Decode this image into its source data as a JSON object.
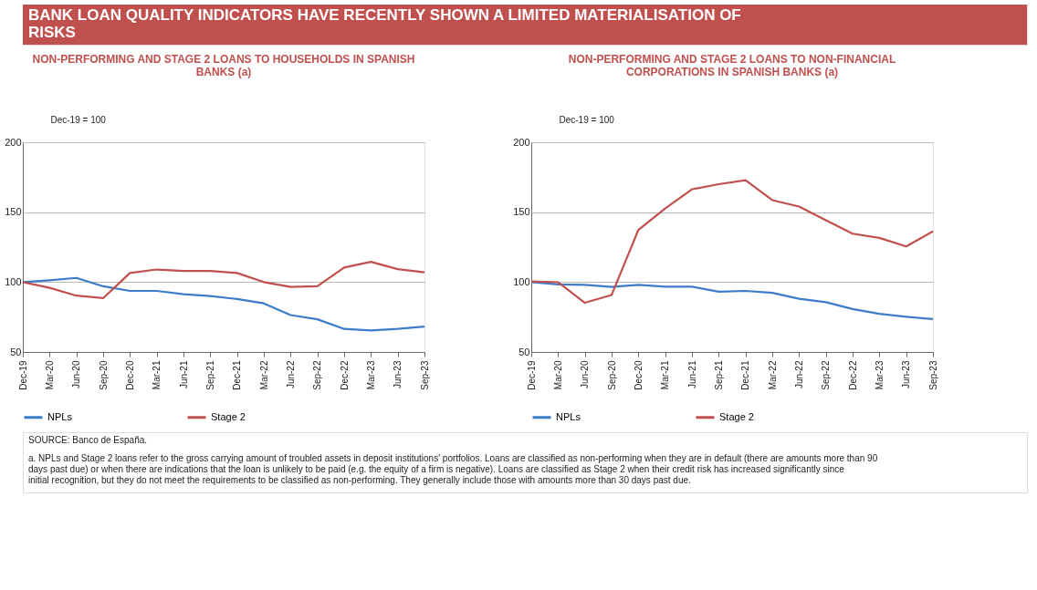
{
  "chart_data": [
    {
      "type": "line",
      "title": "NON-PERFORMING AND STAGE 2 LOANS TO HOUSEHOLDS IN SPANISH BANKS (a)",
      "ylabel": "Dec-19 = 100",
      "annotations": [
        "BANK LOAN QUALITY INDICATORS HAVE RECENTLY SHOWN A LIMITED MATERIALISATION OF RISKS"
      ],
      "categories": [
        "Dec-19",
        "Mar-20",
        "Jun-20",
        "Sep-20",
        "Dec-20",
        "Mar-21",
        "Jun-21",
        "Sep-21",
        "Dec-21",
        "Mar-22",
        "Jun-22",
        "Sep-22",
        "Dec-22",
        "Mar-23",
        "Jun-23",
        "Sep-23"
      ],
      "series": [
        {
          "name": "NPLs",
          "color": "#3d7cc9",
          "values": [
            100,
            101.3,
            103,
            97,
            93.7,
            93.7,
            91.3,
            90,
            87.9,
            84.8,
            76.4,
            73.4,
            66.5,
            65.4,
            66.5,
            68.2
          ]
        },
        {
          "name": "Stage 2",
          "color": "#c0504d",
          "values": [
            100,
            95.9,
            90.3,
            88.5,
            106.5,
            109,
            108,
            108,
            106.5,
            100,
            96.5,
            97,
            110.4,
            114.5,
            109.3,
            107
          ]
        }
      ],
      "ylim": [
        50,
        200
      ],
      "yticks": [
        50,
        100,
        150,
        200
      ],
      "grid": "y",
      "legend": "bottom",
      "line_style": "solid",
      "marker": "none"
    },
    {
      "type": "line",
      "title": "NON-PERFORMING AND STAGE 2 LOANS TO NON-FINANCIAL CORPORATIONS IN SPANISH BANKS (a)",
      "ylabel": "Dec-19 = 100",
      "annotations": [
        "SOURCE: Banco de España.",
        "a. NPLs and Stage 2 loans refer to the gross carrying amount of troubled assets in deposit institutions' portfolios. Loans are classified as non-performing when they are in default (there are amounts more than 90 days past due) or when there are indications that the loan is unlikely to be paid (e.g. the equity of a firm is negative). Loans are classified as Stage 2 when their credit risk has increased significantly since initial recognition, but they do not meet the requirements to be classified as non-performing. They generally include those with amounts more than 30 days past due."
      ],
      "categories": [
        "Dec-19",
        "Mar-20",
        "Jun-20",
        "Sep-20",
        "Dec-20",
        "Mar-21",
        "Jun-21",
        "Sep-21",
        "Dec-21",
        "Mar-22",
        "Jun-22",
        "Sep-22",
        "Dec-22",
        "Mar-23",
        "Jun-23",
        "Sep-23"
      ],
      "series": [
        {
          "name": "NPLs",
          "color": "#3d7cc9",
          "values": [
            100,
            98.4,
            98,
            96.5,
            98,
            96.7,
            96.7,
            93.1,
            93.7,
            92.3,
            88.1,
            85.6,
            80.7,
            77.3,
            75.2,
            73.5
          ]
        },
        {
          "name": "Stage 2",
          "color": "#c0504d",
          "values": [
            100.5,
            99.9,
            85.2,
            90.8,
            137.3,
            152.7,
            166.4,
            170,
            172.9,
            158.6,
            154,
            144.3,
            134.6,
            131.6,
            125.5,
            136.3
          ]
        }
      ],
      "ylim": [
        50,
        200
      ],
      "yticks": [
        50,
        100,
        150,
        200
      ],
      "grid": "y",
      "legend": "bottom",
      "line_style": "solid",
      "marker": "none"
    }
  ]
}
